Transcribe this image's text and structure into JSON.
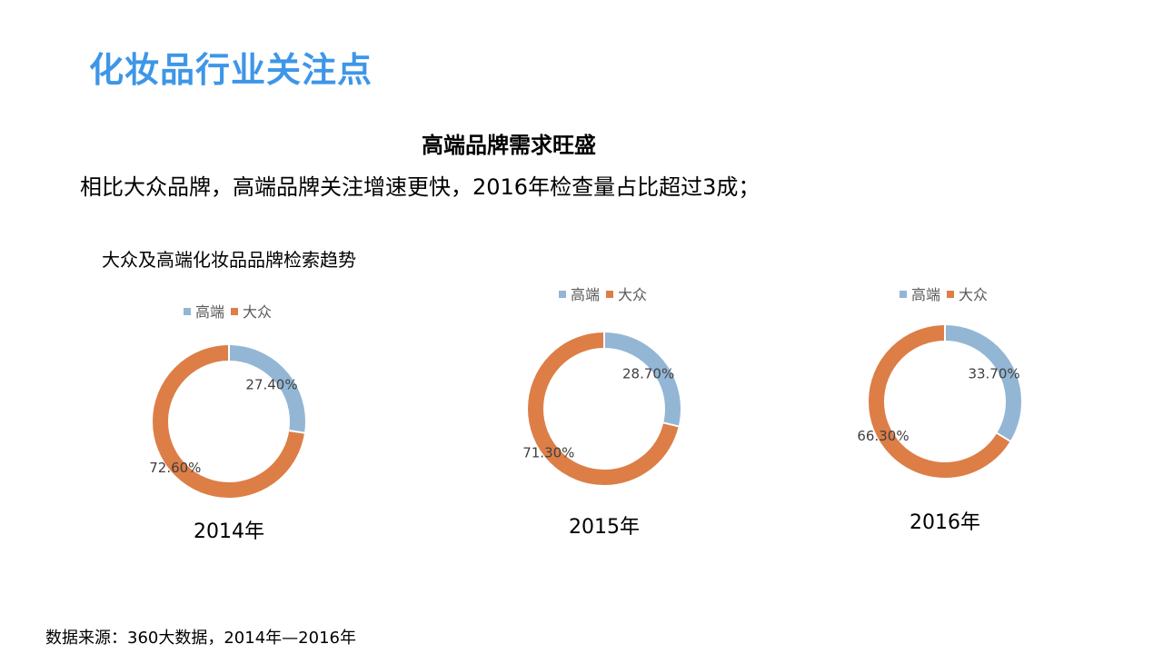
{
  "page": {
    "title": "化妆品行业关注点",
    "subtitle": "高端品牌需求旺盛",
    "description": "相比大众品牌，高端品牌关注增速更快，2016年检查量占比超过3成；",
    "source": "数据来源：360大数据，2014年—2016年"
  },
  "chart_data": {
    "type": "pie",
    "title": "大众及高端化妆品品牌检索趋势",
    "style": "donut",
    "legend_position": "top",
    "series_colors": {
      "高端": "#93b6d5",
      "大众": "#dd7e47"
    },
    "charts": [
      {
        "label": "2014年",
        "slices": [
          {
            "name": "高端",
            "value": 27.4,
            "value_label": "27.40%"
          },
          {
            "name": "大众",
            "value": 72.6,
            "value_label": "72.60%"
          }
        ]
      },
      {
        "label": "2015年",
        "slices": [
          {
            "name": "高端",
            "value": 28.7,
            "value_label": "28.70%"
          },
          {
            "name": "大众",
            "value": 71.3,
            "value_label": "71.30%"
          }
        ]
      },
      {
        "label": "2016年",
        "slices": [
          {
            "name": "高端",
            "value": 33.7,
            "value_label": "33.70%"
          },
          {
            "name": "大众",
            "value": 66.3,
            "value_label": "66.30%"
          }
        ]
      }
    ]
  }
}
